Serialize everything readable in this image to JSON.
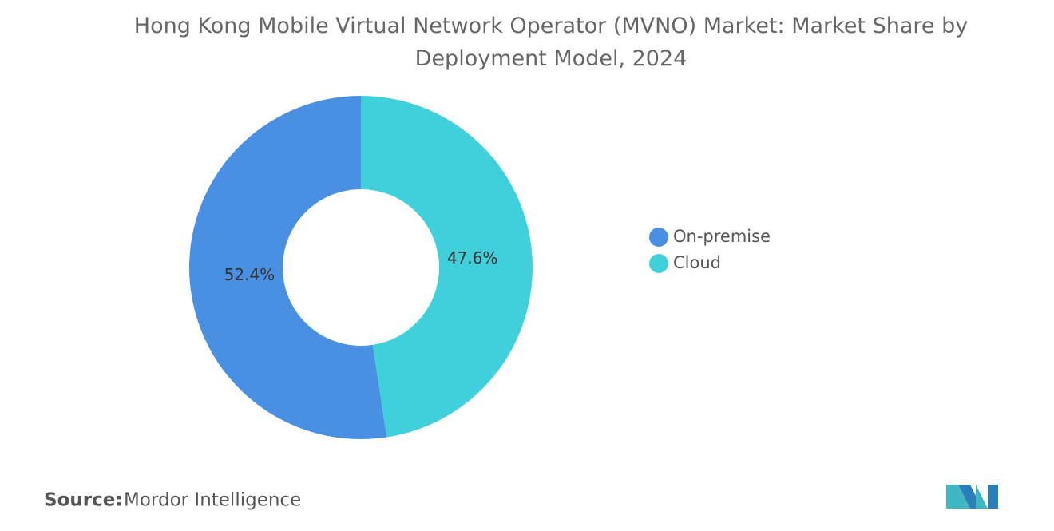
{
  "chart_data": {
    "type": "donut",
    "title": "Hong Kong Mobile Virtual Network Operator (MVNO) Market: Market Share by Deployment Model, 2024",
    "categories": [
      "On-premise",
      "Cloud"
    ],
    "values": [
      52.4,
      47.6
    ],
    "value_labels": [
      "52.4%",
      "47.6%"
    ],
    "colors": [
      "#4a90e2",
      "#40d0dc"
    ],
    "legend": "right",
    "source_label": "Source:",
    "source": "Mordor Intelligence"
  }
}
